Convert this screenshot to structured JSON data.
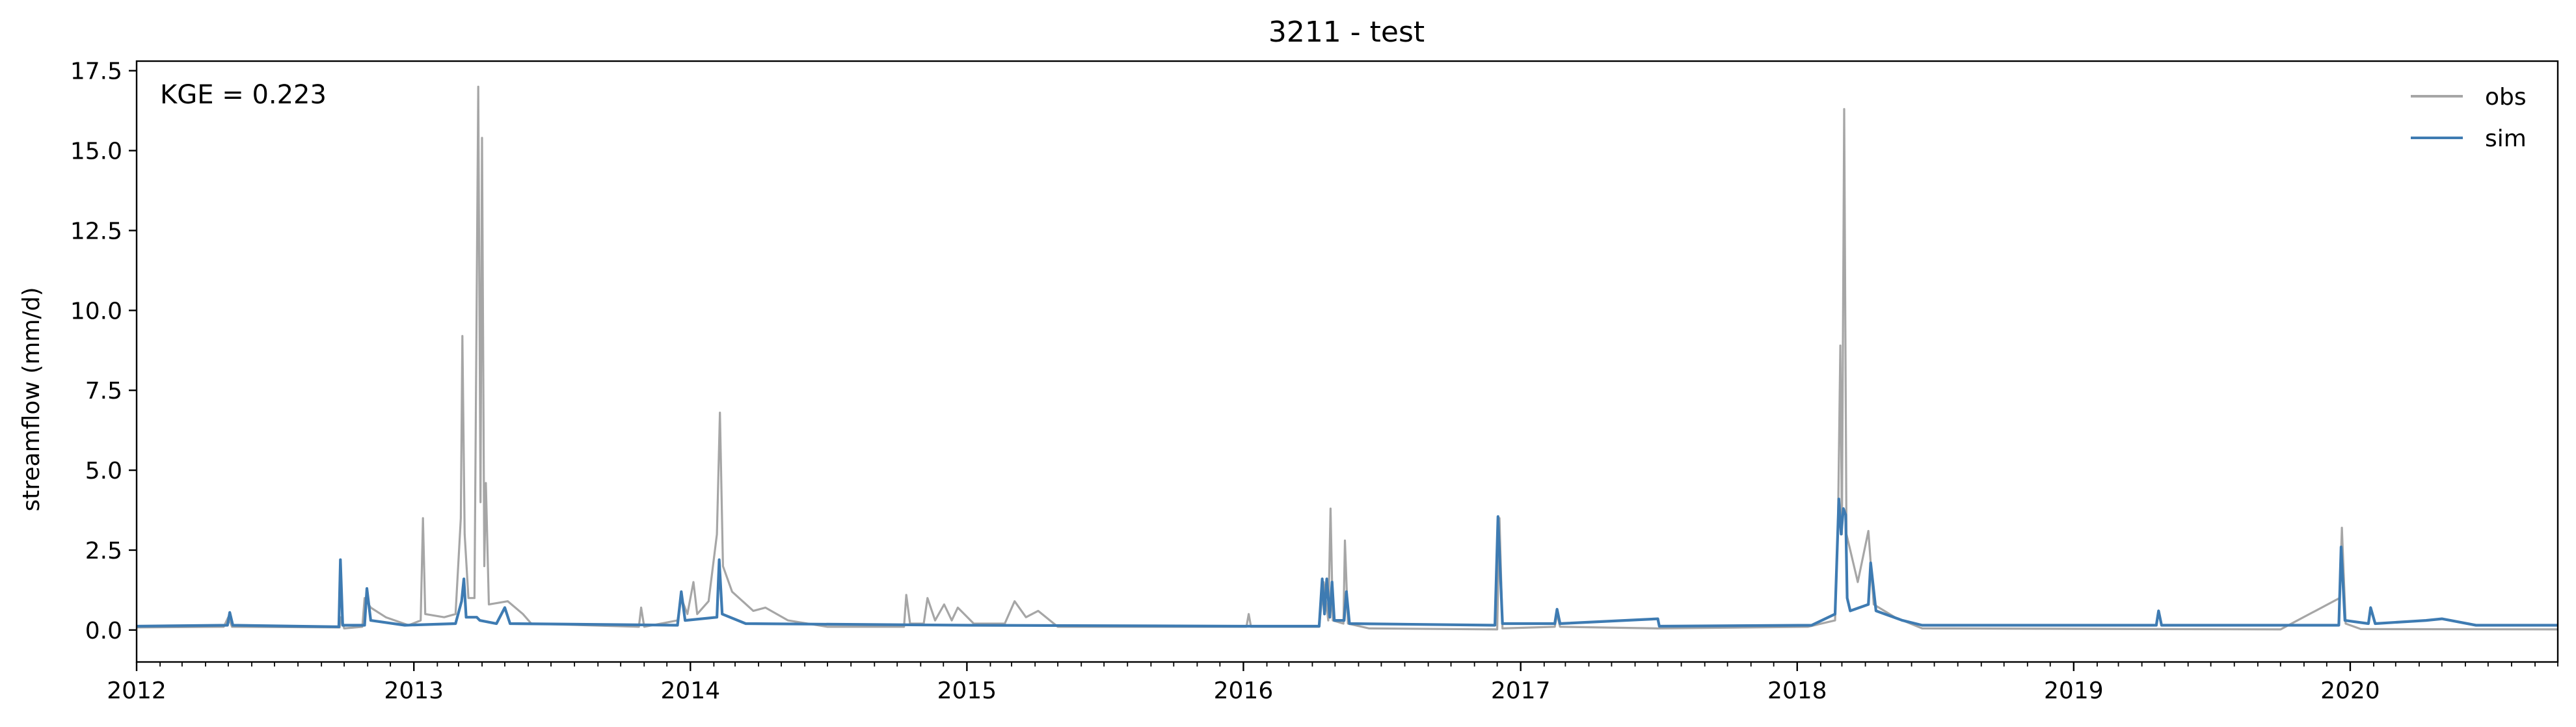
{
  "chart_data": {
    "type": "line",
    "title": "3211 - test",
    "ylabel": "streamflow (mm/d)",
    "xlabel": "",
    "xlim": [
      "2012-01-01",
      "2020-10-01"
    ],
    "ylim": [
      -1.0,
      17.8
    ],
    "yticks": [
      "0.0",
      "2.5",
      "5.0",
      "7.5",
      "10.0",
      "12.5",
      "15.0",
      "17.5"
    ],
    "xticks": [
      "2012",
      "2013",
      "2014",
      "2015",
      "2016",
      "2017",
      "2018",
      "2019",
      "2020"
    ],
    "annotation": "KGE = 0.223",
    "legend_position": "top-right",
    "grid": false,
    "series": [
      {
        "name": "obs",
        "color": "#a6a6a6",
        "points": [
          [
            "2012-01-01",
            0.08
          ],
          [
            "2012-04-25",
            0.1
          ],
          [
            "2012-05-01",
            0.4
          ],
          [
            "2012-05-06",
            0.1
          ],
          [
            "2012-09-25",
            0.08
          ],
          [
            "2012-09-27",
            0.4
          ],
          [
            "2012-10-01",
            0.05
          ],
          [
            "2012-10-25",
            0.1
          ],
          [
            "2012-10-28",
            1.0
          ],
          [
            "2012-11-05",
            0.7
          ],
          [
            "2012-11-25",
            0.4
          ],
          [
            "2012-12-25",
            0.15
          ],
          [
            "2013-01-10",
            0.3
          ],
          [
            "2013-01-13",
            3.5
          ],
          [
            "2013-01-16",
            0.5
          ],
          [
            "2013-02-10",
            0.4
          ],
          [
            "2013-02-25",
            0.5
          ],
          [
            "2013-03-04",
            3.5
          ],
          [
            "2013-03-06",
            9.2
          ],
          [
            "2013-03-09",
            3.0
          ],
          [
            "2013-03-14",
            1.0
          ],
          [
            "2013-03-22",
            1.0
          ],
          [
            "2013-03-27",
            17.0
          ],
          [
            "2013-03-30",
            4.0
          ],
          [
            "2013-04-01",
            15.4
          ],
          [
            "2013-04-04",
            2.0
          ],
          [
            "2013-04-06",
            4.6
          ],
          [
            "2013-04-10",
            0.8
          ],
          [
            "2013-05-05",
            0.9
          ],
          [
            "2013-05-25",
            0.5
          ],
          [
            "2013-06-05",
            0.2
          ],
          [
            "2013-10-25",
            0.1
          ],
          [
            "2013-10-28",
            0.7
          ],
          [
            "2013-11-01",
            0.1
          ],
          [
            "2013-12-15",
            0.3
          ],
          [
            "2013-12-20",
            1.0
          ],
          [
            "2013-12-28",
            0.5
          ],
          [
            "2014-01-05",
            1.5
          ],
          [
            "2014-01-10",
            0.5
          ],
          [
            "2014-01-25",
            0.9
          ],
          [
            "2014-02-05",
            3.0
          ],
          [
            "2014-02-09",
            6.8
          ],
          [
            "2014-02-13",
            2.0
          ],
          [
            "2014-02-25",
            1.2
          ],
          [
            "2014-03-25",
            0.6
          ],
          [
            "2014-04-10",
            0.7
          ],
          [
            "2014-05-10",
            0.3
          ],
          [
            "2014-07-01",
            0.1
          ],
          [
            "2014-10-10",
            0.1
          ],
          [
            "2014-10-13",
            1.1
          ],
          [
            "2014-10-18",
            0.2
          ],
          [
            "2014-11-05",
            0.2
          ],
          [
            "2014-11-10",
            1.0
          ],
          [
            "2014-11-20",
            0.3
          ],
          [
            "2014-12-02",
            0.8
          ],
          [
            "2014-12-12",
            0.3
          ],
          [
            "2014-12-20",
            0.7
          ],
          [
            "2015-01-10",
            0.2
          ],
          [
            "2015-02-20",
            0.2
          ],
          [
            "2015-03-05",
            0.9
          ],
          [
            "2015-03-20",
            0.4
          ],
          [
            "2015-04-05",
            0.6
          ],
          [
            "2015-05-01",
            0.1
          ],
          [
            "2016-01-05",
            0.1
          ],
          [
            "2016-01-08",
            0.5
          ],
          [
            "2016-01-11",
            0.1
          ],
          [
            "2016-04-10",
            0.1
          ],
          [
            "2016-04-16",
            1.5
          ],
          [
            "2016-04-22",
            0.3
          ],
          [
            "2016-04-25",
            3.8
          ],
          [
            "2016-04-28",
            0.3
          ],
          [
            "2016-05-12",
            0.2
          ],
          [
            "2016-05-14",
            2.8
          ],
          [
            "2016-05-18",
            0.2
          ],
          [
            "2016-06-15",
            0.05
          ],
          [
            "2016-12-01",
            0.02
          ],
          [
            "2016-12-04",
            3.5
          ],
          [
            "2016-12-08",
            0.05
          ],
          [
            "2017-02-15",
            0.1
          ],
          [
            "2017-02-18",
            0.5
          ],
          [
            "2017-02-22",
            0.1
          ],
          [
            "2017-07-01",
            0.05
          ],
          [
            "2018-01-15",
            0.1
          ],
          [
            "2018-02-20",
            0.3
          ],
          [
            "2018-02-24",
            3.5
          ],
          [
            "2018-02-27",
            8.9
          ],
          [
            "2018-03-01",
            3.0
          ],
          [
            "2018-03-04",
            16.3
          ],
          [
            "2018-03-07",
            3.0
          ],
          [
            "2018-03-12",
            2.5
          ],
          [
            "2018-03-22",
            1.5
          ],
          [
            "2018-04-05",
            3.1
          ],
          [
            "2018-04-12",
            0.8
          ],
          [
            "2018-05-10",
            0.4
          ],
          [
            "2018-06-15",
            0.05
          ],
          [
            "2019-10-01",
            0.02
          ],
          [
            "2019-12-18",
            1.0
          ],
          [
            "2019-12-21",
            3.2
          ],
          [
            "2019-12-26",
            0.2
          ],
          [
            "2020-01-15",
            0.03
          ],
          [
            "2020-10-01",
            0.02
          ]
        ]
      },
      {
        "name": "sim",
        "color": "#3e7bb2",
        "points": [
          [
            "2012-01-01",
            0.12
          ],
          [
            "2012-04-30",
            0.15
          ],
          [
            "2012-05-03",
            0.55
          ],
          [
            "2012-05-07",
            0.15
          ],
          [
            "2012-09-24",
            0.1
          ],
          [
            "2012-09-26",
            2.2
          ],
          [
            "2012-09-29",
            0.15
          ],
          [
            "2012-10-28",
            0.15
          ],
          [
            "2012-10-31",
            1.3
          ],
          [
            "2012-11-05",
            0.3
          ],
          [
            "2012-12-20",
            0.15
          ],
          [
            "2013-02-25",
            0.2
          ],
          [
            "2013-03-05",
            0.9
          ],
          [
            "2013-03-08",
            1.6
          ],
          [
            "2013-03-11",
            0.4
          ],
          [
            "2013-03-25",
            0.4
          ],
          [
            "2013-03-29",
            0.3
          ],
          [
            "2013-04-20",
            0.2
          ],
          [
            "2013-05-01",
            0.7
          ],
          [
            "2013-05-08",
            0.2
          ],
          [
            "2013-12-15",
            0.15
          ],
          [
            "2013-12-20",
            1.2
          ],
          [
            "2013-12-25",
            0.3
          ],
          [
            "2014-02-05",
            0.4
          ],
          [
            "2014-02-08",
            2.2
          ],
          [
            "2014-02-12",
            0.5
          ],
          [
            "2014-03-15",
            0.2
          ],
          [
            "2015-01-01",
            0.15
          ],
          [
            "2016-01-01",
            0.12
          ],
          [
            "2016-04-10",
            0.12
          ],
          [
            "2016-04-14",
            1.6
          ],
          [
            "2016-04-17",
            0.5
          ],
          [
            "2016-04-20",
            1.6
          ],
          [
            "2016-04-24",
            0.4
          ],
          [
            "2016-04-27",
            1.5
          ],
          [
            "2016-04-30",
            0.3
          ],
          [
            "2016-05-13",
            0.3
          ],
          [
            "2016-05-16",
            1.2
          ],
          [
            "2016-05-20",
            0.2
          ],
          [
            "2016-11-28",
            0.15
          ],
          [
            "2016-12-02",
            3.55
          ],
          [
            "2016-12-08",
            0.2
          ],
          [
            "2017-02-15",
            0.2
          ],
          [
            "2017-02-18",
            0.65
          ],
          [
            "2017-02-22",
            0.2
          ],
          [
            "2017-07-01",
            0.35
          ],
          [
            "2017-07-03",
            0.12
          ],
          [
            "2018-01-20",
            0.15
          ],
          [
            "2018-02-20",
            0.5
          ],
          [
            "2018-02-25",
            4.1
          ],
          [
            "2018-02-28",
            3.0
          ],
          [
            "2018-03-03",
            3.8
          ],
          [
            "2018-03-06",
            3.6
          ],
          [
            "2018-03-08",
            1.0
          ],
          [
            "2018-03-12",
            0.6
          ],
          [
            "2018-04-05",
            0.8
          ],
          [
            "2018-04-08",
            2.1
          ],
          [
            "2018-04-15",
            0.6
          ],
          [
            "2018-05-20",
            0.3
          ],
          [
            "2018-06-15",
            0.15
          ],
          [
            "2019-04-20",
            0.15
          ],
          [
            "2019-04-23",
            0.6
          ],
          [
            "2019-04-27",
            0.15
          ],
          [
            "2019-12-17",
            0.15
          ],
          [
            "2019-12-20",
            2.6
          ],
          [
            "2019-12-25",
            0.3
          ],
          [
            "2020-01-25",
            0.2
          ],
          [
            "2020-01-28",
            0.7
          ],
          [
            "2020-02-03",
            0.2
          ],
          [
            "2020-04-10",
            0.3
          ],
          [
            "2020-05-01",
            0.35
          ],
          [
            "2020-06-15",
            0.15
          ],
          [
            "2020-10-01",
            0.15
          ]
        ]
      }
    ]
  }
}
